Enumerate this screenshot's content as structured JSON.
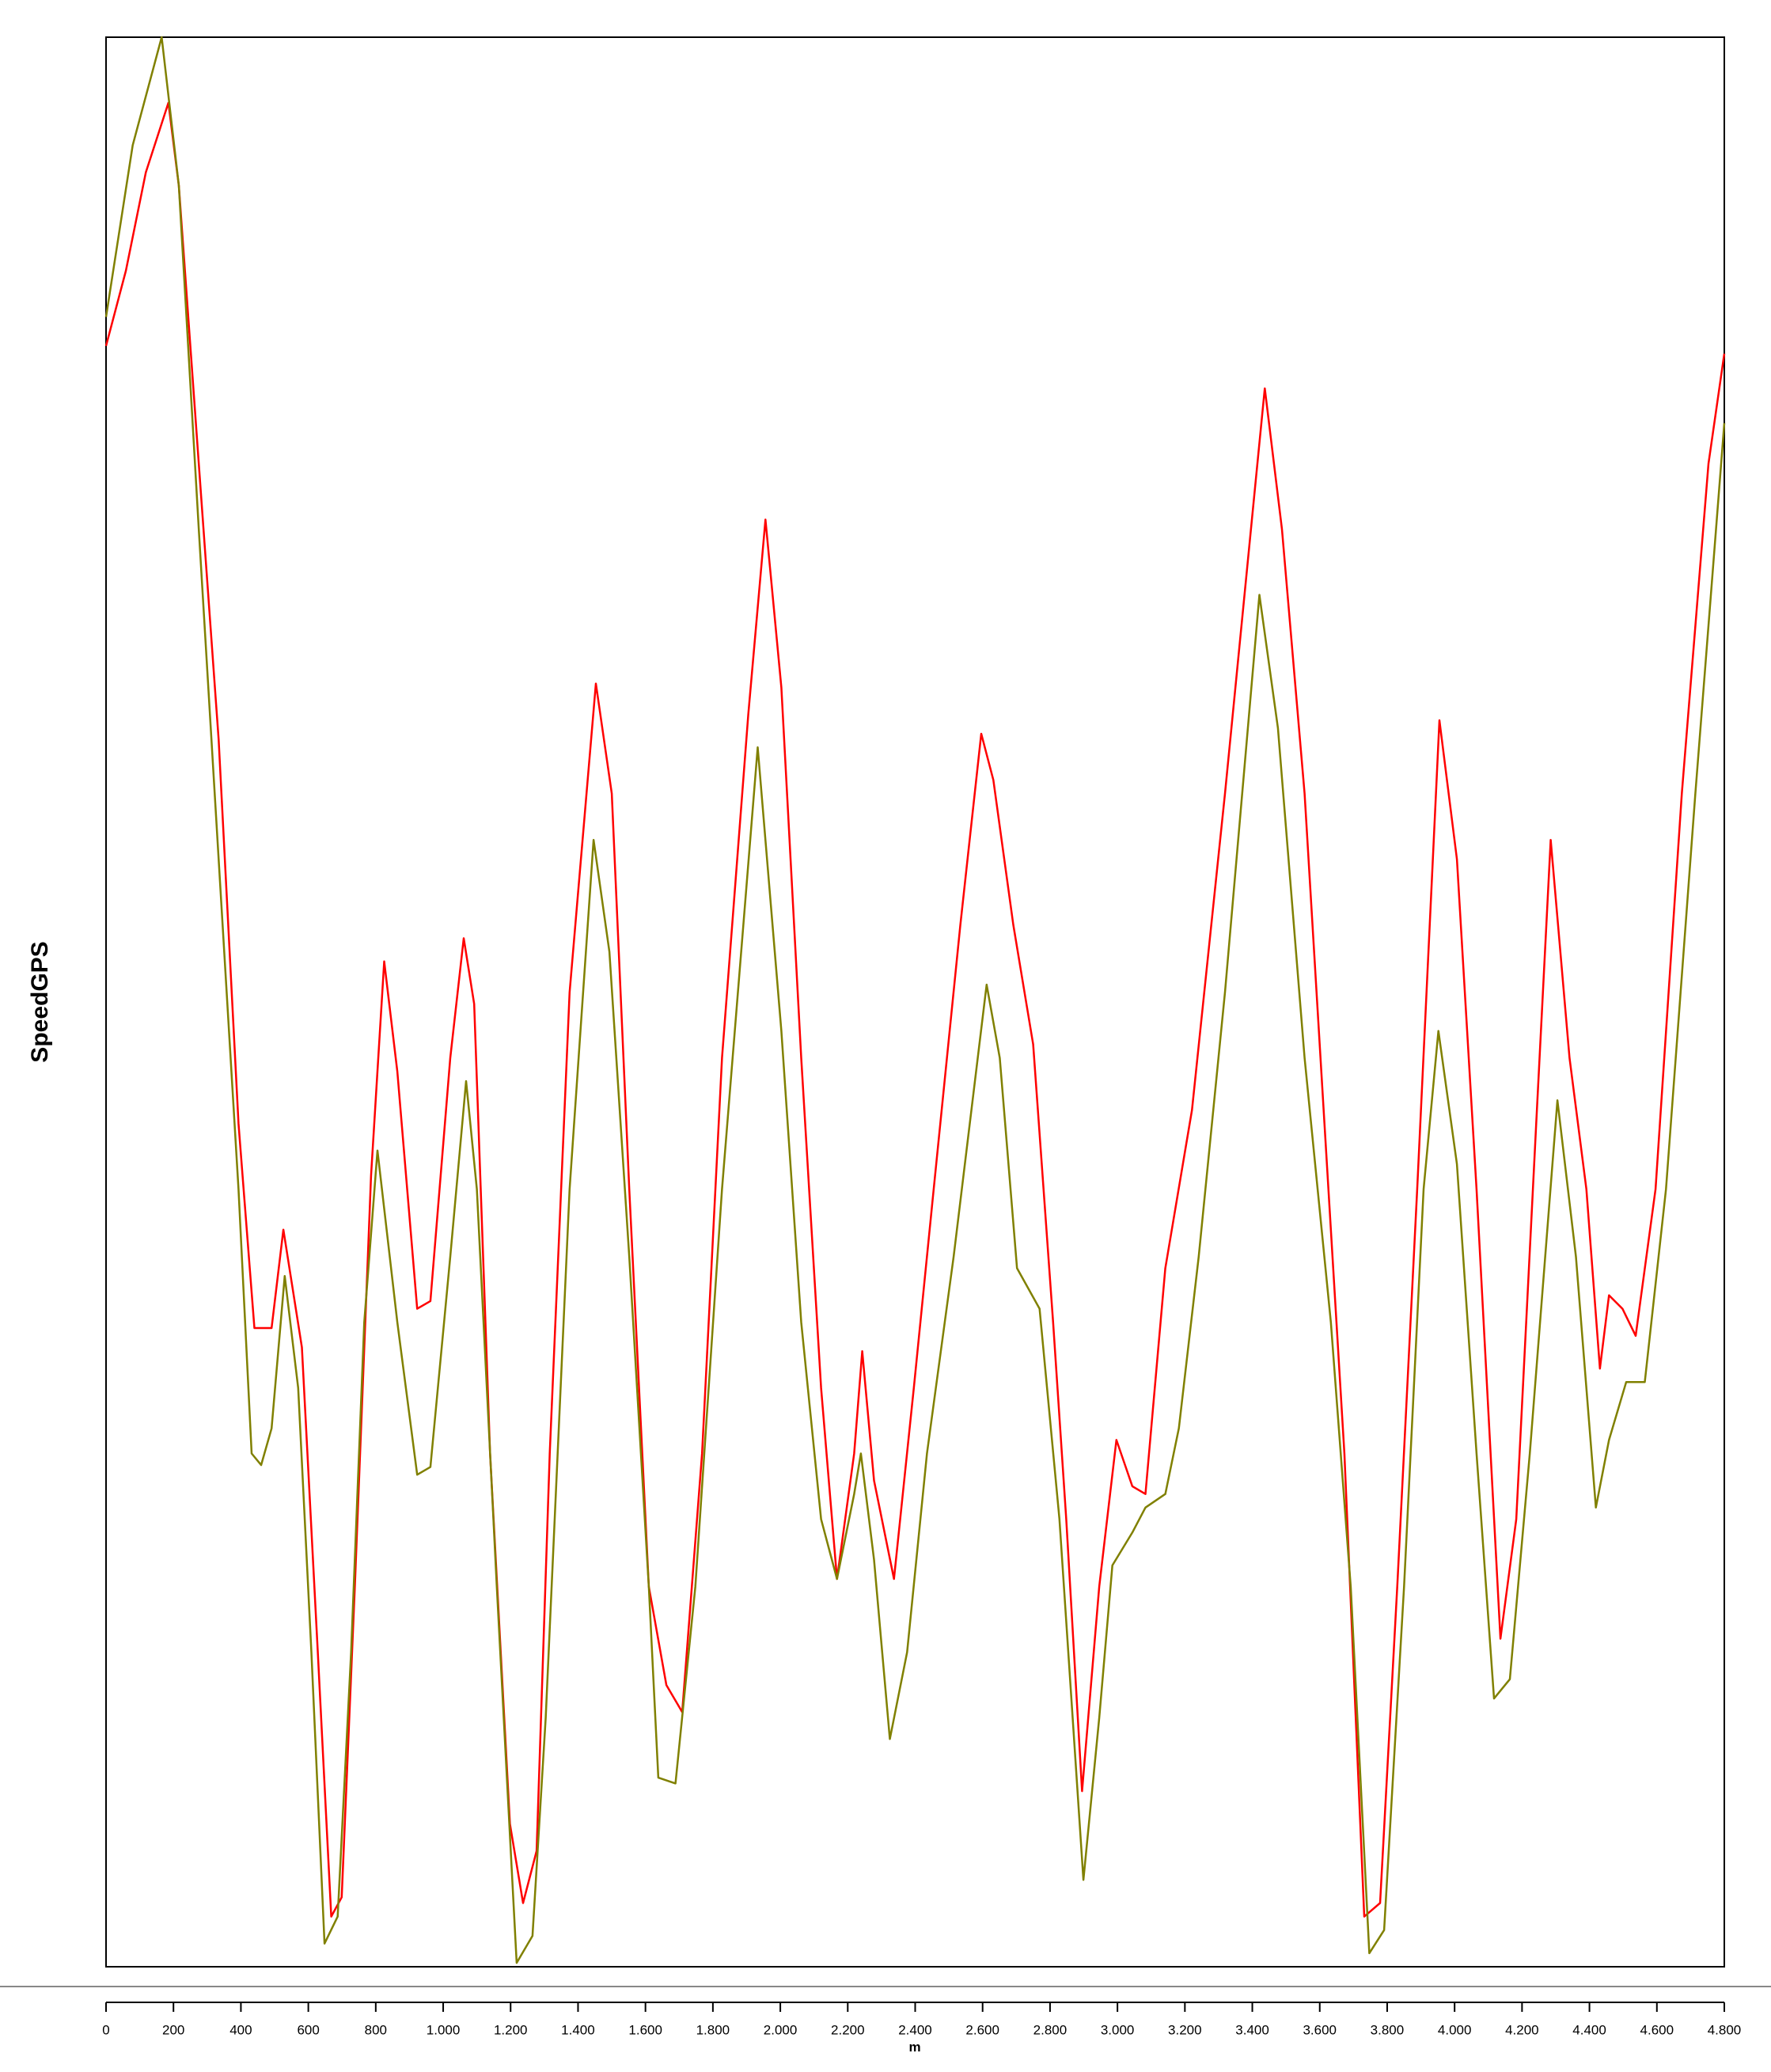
{
  "chart_data": {
    "type": "line",
    "y_label": "SpeedGPS",
    "x_label": "m",
    "xlim": [
      0,
      4800
    ],
    "ylim": [
      0,
      100
    ],
    "xticks": [
      0,
      200,
      400,
      600,
      800,
      {
        "value": 1000,
        "label": "1.000"
      },
      {
        "value": 1200,
        "label": "1.200"
      },
      {
        "value": 1400,
        "label": "1.400"
      },
      {
        "value": 1600,
        "label": "1.600"
      },
      {
        "value": 1800,
        "label": "1.800"
      },
      {
        "value": 2000,
        "label": "2.000"
      },
      {
        "value": 2200,
        "label": "2.200"
      },
      {
        "value": 2400,
        "label": "2.400"
      },
      {
        "value": 2600,
        "label": "2.600"
      },
      {
        "value": 2800,
        "label": "2.800"
      },
      {
        "value": 3000,
        "label": "3.000"
      },
      {
        "value": 3200,
        "label": "3.200"
      },
      {
        "value": 3400,
        "label": "3.400"
      },
      {
        "value": 3600,
        "label": "3.600"
      },
      {
        "value": 3800,
        "label": "3.800"
      },
      {
        "value": 4000,
        "label": "4.000"
      },
      {
        "value": 4200,
        "label": "4.200"
      },
      {
        "value": 4400,
        "label": "4.400"
      },
      {
        "value": 4600,
        "label": "4.600"
      },
      {
        "value": 4800,
        "label": "4.800"
      }
    ],
    "series": [
      {
        "color": "#ff0000",
        "x": [
          0,
          59,
          118,
          185,
          216,
          275,
          334,
          393,
          440,
          491,
          526,
          581,
          628,
          668,
          699,
          738,
          786,
          825,
          864,
          923,
          962,
          1021,
          1061,
          1092,
          1139,
          1198,
          1237,
          1277,
          1316,
          1375,
          1453,
          1500,
          1552,
          1610,
          1662,
          1709,
          1768,
          1827,
          1905,
          1956,
          2003,
          2062,
          2121,
          2168,
          2219,
          2243,
          2278,
          2337,
          2396,
          2455,
          2534,
          2596,
          2632,
          2691,
          2750,
          2809,
          2848,
          2895,
          2946,
          2997,
          3044,
          3083,
          3142,
          3221,
          3319,
          3437,
          3488,
          3555,
          3614,
          3673,
          3732,
          3779,
          3830,
          3889,
          3955,
          4007,
          4065,
          4136,
          4183,
          4242,
          4285,
          4341,
          4391,
          4431,
          4458,
          4498,
          4537,
          4596,
          4674,
          4753,
          4800
        ],
        "values": [
          84.0,
          87.9,
          93.0,
          96.6,
          92.3,
          77.9,
          63.6,
          43.7,
          33.1,
          33.1,
          38.2,
          32.1,
          16.3,
          2.6,
          3.6,
          19.7,
          41.0,
          52.1,
          46.4,
          34.1,
          34.5,
          47.1,
          53.3,
          49.9,
          26.6,
          7.4,
          3.3,
          6.0,
          26.6,
          50.5,
          66.5,
          60.8,
          40.3,
          19.7,
          14.6,
          13.2,
          26.6,
          47.1,
          64.9,
          75.0,
          66.3,
          47.1,
          30.0,
          20.1,
          26.6,
          31.9,
          25.2,
          20.1,
          30.0,
          40.3,
          54.0,
          63.9,
          61.5,
          54.0,
          47.8,
          33.4,
          23.2,
          9.1,
          19.7,
          27.3,
          24.9,
          24.5,
          36.2,
          44.4,
          60.8,
          81.8,
          74.5,
          60.8,
          43.7,
          26.6,
          2.6,
          3.3,
          19.7,
          40.3,
          64.6,
          57.4,
          40.3,
          17.0,
          23.2,
          43.7,
          58.4,
          47.1,
          40.3,
          31.0,
          34.8,
          34.1,
          32.7,
          40.3,
          60.8,
          77.9,
          83.6
        ]
      },
      {
        "color": "#808000",
        "x": [
          0,
          79,
          165,
          216,
          275,
          334,
          393,
          432,
          460,
          491,
          530,
          570,
          609,
          648,
          687,
          727,
          766,
          805,
          864,
          923,
          962,
          1021,
          1068,
          1100,
          1159,
          1218,
          1265,
          1304,
          1375,
          1446,
          1493,
          1552,
          1610,
          1638,
          1689,
          1748,
          1827,
          1933,
          2003,
          2062,
          2121,
          2168,
          2219,
          2239,
          2278,
          2325,
          2376,
          2435,
          2514,
          2612,
          2651,
          2702,
          2769,
          2828,
          2867,
          2899,
          2946,
          2985,
          3044,
          3083,
          3142,
          3182,
          3241,
          3319,
          3421,
          3476,
          3555,
          3633,
          3692,
          3747,
          3791,
          3850,
          3908,
          3952,
          4007,
          4065,
          4117,
          4164,
          4223,
          4305,
          4360,
          4419,
          4458,
          4509,
          4564,
          4627,
          4714,
          4800
        ],
        "values": [
          85.5,
          94.4,
          100.0,
          92.3,
          74.5,
          57.4,
          40.3,
          26.6,
          26.0,
          27.9,
          35.8,
          30.0,
          16.3,
          1.2,
          2.6,
          16.3,
          33.4,
          42.3,
          33.4,
          25.5,
          25.9,
          36.8,
          45.9,
          40.3,
          19.7,
          0.2,
          1.6,
          12.9,
          40.3,
          58.4,
          52.6,
          36.8,
          19.7,
          9.8,
          9.5,
          19.7,
          40.3,
          63.2,
          48.5,
          33.4,
          23.2,
          20.1,
          24.5,
          26.6,
          21.1,
          11.8,
          16.3,
          26.6,
          36.8,
          50.9,
          47.1,
          36.2,
          34.1,
          23.2,
          12.9,
          4.5,
          12.9,
          20.8,
          22.5,
          23.8,
          24.5,
          27.9,
          36.8,
          50.5,
          71.1,
          64.2,
          47.1,
          33.4,
          19.7,
          0.7,
          1.9,
          19.7,
          40.3,
          48.5,
          41.6,
          26.6,
          13.9,
          14.9,
          26.6,
          44.9,
          36.8,
          23.8,
          27.3,
          30.3,
          30.3,
          40.3,
          60.8,
          80.0
        ]
      }
    ]
  }
}
